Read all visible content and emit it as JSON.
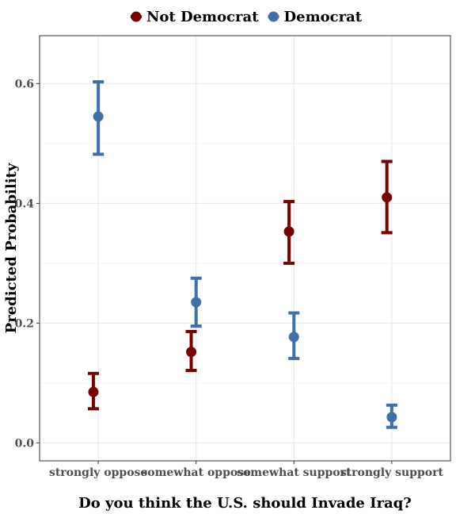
{
  "chart_data": {
    "type": "scatter",
    "xlabel": "Do you think the U.S. should Invade Iraq?",
    "ylabel": "Predicted Probability",
    "categories": [
      "strongly oppose",
      "somewhat oppose",
      "somewhat support",
      "strongly support"
    ],
    "ylim": [
      -0.03,
      0.68
    ],
    "yticks": [
      0.0,
      0.2,
      0.4,
      0.6
    ],
    "ytick_labels": [
      "0.0",
      "0.2",
      "0.4",
      "0.6"
    ],
    "grid": true,
    "legend_position": "top",
    "series": [
      {
        "name": "Not Democrat",
        "color": "#7a0000",
        "offset": -0.05,
        "values": [
          0.085,
          0.152,
          0.353,
          0.41
        ],
        "lower": [
          0.057,
          0.121,
          0.3,
          0.351
        ],
        "upper": [
          0.116,
          0.186,
          0.403,
          0.47
        ]
      },
      {
        "name": "Democrat",
        "color": "#3d6fa8",
        "offset": 0.0,
        "values": [
          0.545,
          0.235,
          0.177,
          0.043
        ],
        "lower": [
          0.482,
          0.195,
          0.141,
          0.026
        ],
        "upper": [
          0.603,
          0.275,
          0.217,
          0.063
        ]
      }
    ]
  }
}
